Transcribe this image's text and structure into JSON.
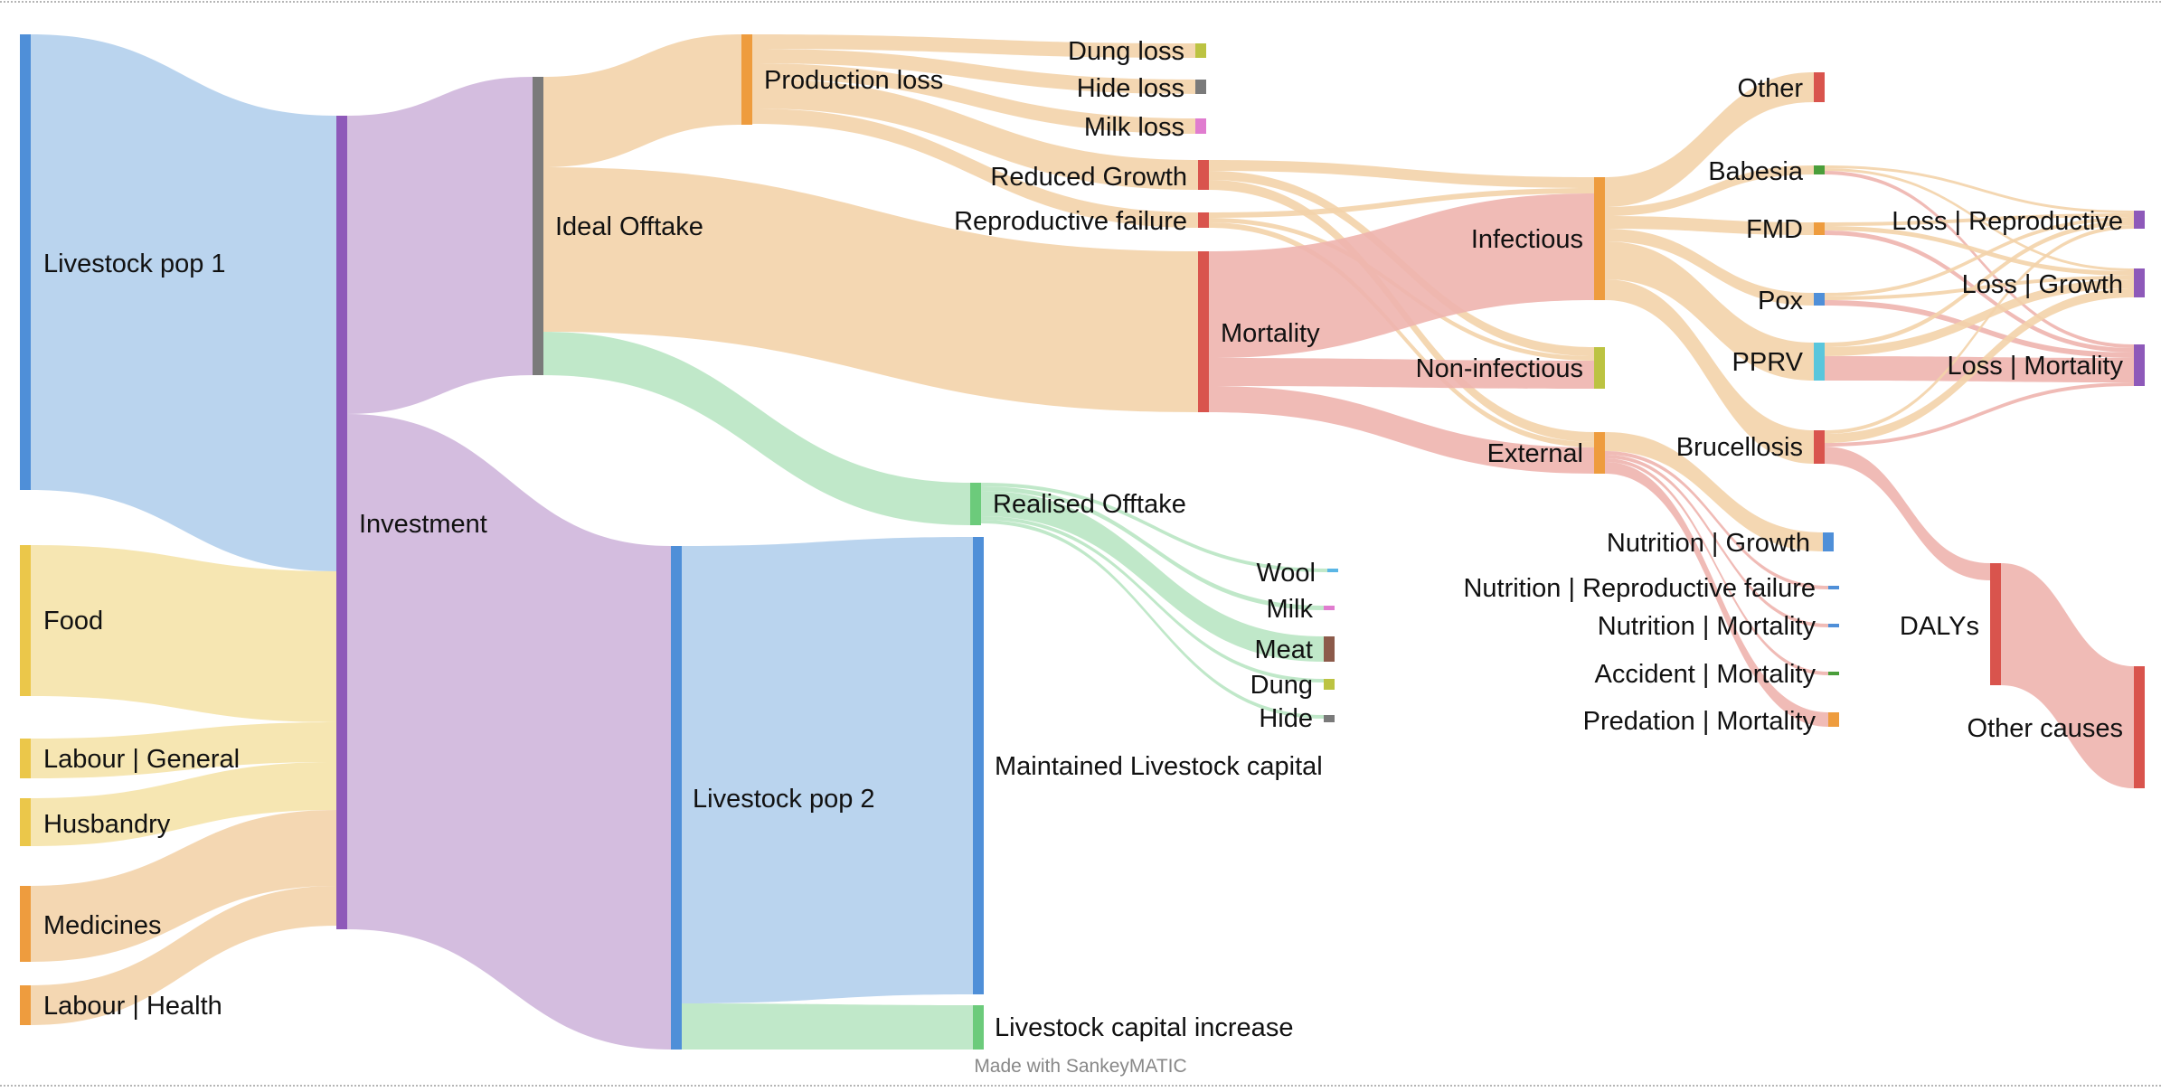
{
  "footer": {
    "credit": "Made with SankeyMATIC"
  },
  "colors": {
    "blue_node": "#4f8fd8",
    "blue_flow": "#b2cfec",
    "purple_node": "#8e59b9",
    "purple_flow": "#cfb6dc",
    "yellow_node": "#ebc74a",
    "yellow_flow": "#f5e3aa",
    "orange_node": "#ee9c3e",
    "orange_flow": "#f3d3aa",
    "gray_node": "#7a7a7a",
    "red_node": "#d9544d",
    "red_flow": "#eeb4ae",
    "green_node": "#6ccb7b",
    "green_flow": "#b9e6c3",
    "olive_node": "#bcc342",
    "pink_node": "#e07ccf",
    "brown_node": "#8c5a4a",
    "cyan_node": "#59c6dc",
    "darkgreen_node": "#4a9e3a",
    "lightblue_node": "#5ab6e5"
  },
  "nodes": [
    {
      "id": "lp1",
      "label": "Livestock pop 1",
      "color": "blue_node"
    },
    {
      "id": "food",
      "label": "Food",
      "color": "yellow_node"
    },
    {
      "id": "labgen",
      "label": "Labour | General",
      "color": "yellow_node"
    },
    {
      "id": "husb",
      "label": "Husbandry",
      "color": "yellow_node"
    },
    {
      "id": "med",
      "label": "Medicines",
      "color": "orange_node"
    },
    {
      "id": "labhealth",
      "label": "Labour | Health",
      "color": "orange_node"
    },
    {
      "id": "invest",
      "label": "Investment",
      "color": "purple_node"
    },
    {
      "id": "ideal",
      "label": "Ideal Offtake",
      "color": "gray_node"
    },
    {
      "id": "lp2",
      "label": "Livestock pop 2",
      "color": "blue_node"
    },
    {
      "id": "prodloss",
      "label": "Production loss",
      "color": "orange_node"
    },
    {
      "id": "realised",
      "label": "Realised Offtake",
      "color": "green_node"
    },
    {
      "id": "maint",
      "label": "Maintained Livestock capital",
      "color": "blue_node"
    },
    {
      "id": "lci",
      "label": "Livestock capital increase",
      "color": "green_node"
    },
    {
      "id": "dung_loss",
      "label": "Dung loss",
      "color": "olive_node"
    },
    {
      "id": "hide_loss",
      "label": "Hide loss",
      "color": "gray_node"
    },
    {
      "id": "milk_loss",
      "label": "Milk loss",
      "color": "pink_node"
    },
    {
      "id": "redgrowth",
      "label": "Reduced Growth",
      "color": "red_node"
    },
    {
      "id": "repfail",
      "label": "Reproductive failure",
      "color": "red_node"
    },
    {
      "id": "mort",
      "label": "Mortality",
      "color": "red_node"
    },
    {
      "id": "wool",
      "label": "Wool",
      "color": "lightblue_node"
    },
    {
      "id": "milk",
      "label": "Milk",
      "color": "pink_node"
    },
    {
      "id": "meat",
      "label": "Meat",
      "color": "brown_node"
    },
    {
      "id": "dung",
      "label": "Dung",
      "color": "olive_node"
    },
    {
      "id": "hide",
      "label": "Hide",
      "color": "gray_node"
    },
    {
      "id": "infect",
      "label": "Infectious",
      "color": "orange_node"
    },
    {
      "id": "noninf",
      "label": "Non-infectious",
      "color": "olive_node"
    },
    {
      "id": "ext",
      "label": "External",
      "color": "orange_node"
    },
    {
      "id": "other",
      "label": "Other",
      "color": "red_node"
    },
    {
      "id": "babesia",
      "label": "Babesia",
      "color": "darkgreen_node"
    },
    {
      "id": "fmd",
      "label": "FMD",
      "color": "orange_node"
    },
    {
      "id": "pox",
      "label": "Pox",
      "color": "blue_node"
    },
    {
      "id": "pprv",
      "label": "PPRV",
      "color": "cyan_node"
    },
    {
      "id": "bruc",
      "label": "Brucellosis",
      "color": "red_node"
    },
    {
      "id": "nutg",
      "label": "Nutrition | Growth",
      "color": "blue_node"
    },
    {
      "id": "nutr",
      "label": "Nutrition | Reproductive failure",
      "color": "blue_node"
    },
    {
      "id": "nutm",
      "label": "Nutrition | Mortality",
      "color": "blue_node"
    },
    {
      "id": "accm",
      "label": "Accident | Mortality",
      "color": "darkgreen_node"
    },
    {
      "id": "predm",
      "label": "Predation | Mortality",
      "color": "orange_node"
    },
    {
      "id": "dalys",
      "label": "DALYs",
      "color": "red_node"
    },
    {
      "id": "lrep",
      "label": "Loss | Reproductive",
      "color": "purple_node"
    },
    {
      "id": "lgrowth",
      "label": "Loss | Growth",
      "color": "purple_node"
    },
    {
      "id": "lmort",
      "label": "Loss | Mortality",
      "color": "purple_node"
    },
    {
      "id": "othercauses",
      "label": "Other causes",
      "color": "red_node"
    }
  ],
  "flows": [
    {
      "from": "lp1",
      "to": "invest",
      "color": "blue_flow"
    },
    {
      "from": "food",
      "to": "invest",
      "color": "yellow_flow"
    },
    {
      "from": "labgen",
      "to": "invest",
      "color": "yellow_flow"
    },
    {
      "from": "husb",
      "to": "invest",
      "color": "yellow_flow"
    },
    {
      "from": "med",
      "to": "invest",
      "color": "orange_flow"
    },
    {
      "from": "labhealth",
      "to": "invest",
      "color": "orange_flow"
    },
    {
      "from": "invest",
      "to": "ideal",
      "color": "purple_flow"
    },
    {
      "from": "invest",
      "to": "lp2",
      "color": "purple_flow"
    },
    {
      "from": "ideal",
      "to": "prodloss",
      "color": "orange_flow"
    },
    {
      "from": "ideal",
      "to": "mort",
      "color": "orange_flow"
    },
    {
      "from": "ideal",
      "to": "realised",
      "color": "green_flow"
    },
    {
      "from": "prodloss",
      "to": "dung_loss",
      "color": "orange_flow"
    },
    {
      "from": "prodloss",
      "to": "hide_loss",
      "color": "orange_flow"
    },
    {
      "from": "prodloss",
      "to": "milk_loss",
      "color": "orange_flow"
    },
    {
      "from": "prodloss",
      "to": "redgrowth",
      "color": "orange_flow"
    },
    {
      "from": "prodloss",
      "to": "repfail",
      "color": "orange_flow"
    },
    {
      "from": "lp2",
      "to": "maint",
      "color": "blue_flow"
    },
    {
      "from": "lp2",
      "to": "lci",
      "color": "green_flow"
    },
    {
      "from": "realised",
      "to": "wool",
      "color": "green_flow"
    },
    {
      "from": "realised",
      "to": "milk",
      "color": "green_flow"
    },
    {
      "from": "realised",
      "to": "meat",
      "color": "green_flow"
    },
    {
      "from": "realised",
      "to": "dung",
      "color": "green_flow"
    },
    {
      "from": "realised",
      "to": "hide",
      "color": "green_flow"
    },
    {
      "from": "redgrowth",
      "to": "infect",
      "color": "orange_flow"
    },
    {
      "from": "redgrowth",
      "to": "noninf",
      "color": "orange_flow"
    },
    {
      "from": "redgrowth",
      "to": "ext",
      "color": "orange_flow"
    },
    {
      "from": "repfail",
      "to": "infect",
      "color": "orange_flow"
    },
    {
      "from": "repfail",
      "to": "noninf",
      "color": "orange_flow"
    },
    {
      "from": "repfail",
      "to": "ext",
      "color": "orange_flow"
    },
    {
      "from": "mort",
      "to": "infect",
      "color": "red_flow"
    },
    {
      "from": "mort",
      "to": "noninf",
      "color": "red_flow"
    },
    {
      "from": "mort",
      "to": "ext",
      "color": "red_flow"
    },
    {
      "from": "infect",
      "to": "other",
      "color": "orange_flow"
    },
    {
      "from": "infect",
      "to": "babesia",
      "color": "orange_flow"
    },
    {
      "from": "infect",
      "to": "fmd",
      "color": "orange_flow"
    },
    {
      "from": "infect",
      "to": "pox",
      "color": "orange_flow"
    },
    {
      "from": "infect",
      "to": "pprv",
      "color": "orange_flow"
    },
    {
      "from": "infect",
      "to": "bruc",
      "color": "orange_flow"
    },
    {
      "from": "ext",
      "to": "nutg",
      "color": "orange_flow"
    },
    {
      "from": "ext",
      "to": "nutr",
      "color": "red_flow"
    },
    {
      "from": "ext",
      "to": "nutm",
      "color": "red_flow"
    },
    {
      "from": "ext",
      "to": "accm",
      "color": "red_flow"
    },
    {
      "from": "ext",
      "to": "predm",
      "color": "red_flow"
    },
    {
      "from": "babesia",
      "to": "lrep",
      "color": "orange_flow"
    },
    {
      "from": "babesia",
      "to": "lgrowth",
      "color": "orange_flow"
    },
    {
      "from": "babesia",
      "to": "lmort",
      "color": "red_flow"
    },
    {
      "from": "fmd",
      "to": "lrep",
      "color": "orange_flow"
    },
    {
      "from": "fmd",
      "to": "lgrowth",
      "color": "orange_flow"
    },
    {
      "from": "fmd",
      "to": "lmort",
      "color": "red_flow"
    },
    {
      "from": "pox",
      "to": "lrep",
      "color": "orange_flow"
    },
    {
      "from": "pox",
      "to": "lgrowth",
      "color": "orange_flow"
    },
    {
      "from": "pox",
      "to": "lmort",
      "color": "red_flow"
    },
    {
      "from": "pprv",
      "to": "lrep",
      "color": "orange_flow"
    },
    {
      "from": "pprv",
      "to": "lgrowth",
      "color": "orange_flow"
    },
    {
      "from": "pprv",
      "to": "lmort",
      "color": "red_flow"
    },
    {
      "from": "bruc",
      "to": "lrep",
      "color": "orange_flow"
    },
    {
      "from": "bruc",
      "to": "lgrowth",
      "color": "orange_flow"
    },
    {
      "from": "bruc",
      "to": "lmort",
      "color": "red_flow"
    },
    {
      "from": "bruc",
      "to": "dalys",
      "color": "red_flow"
    },
    {
      "from": "dalys",
      "to": "othercauses",
      "color": "red_flow"
    }
  ]
}
